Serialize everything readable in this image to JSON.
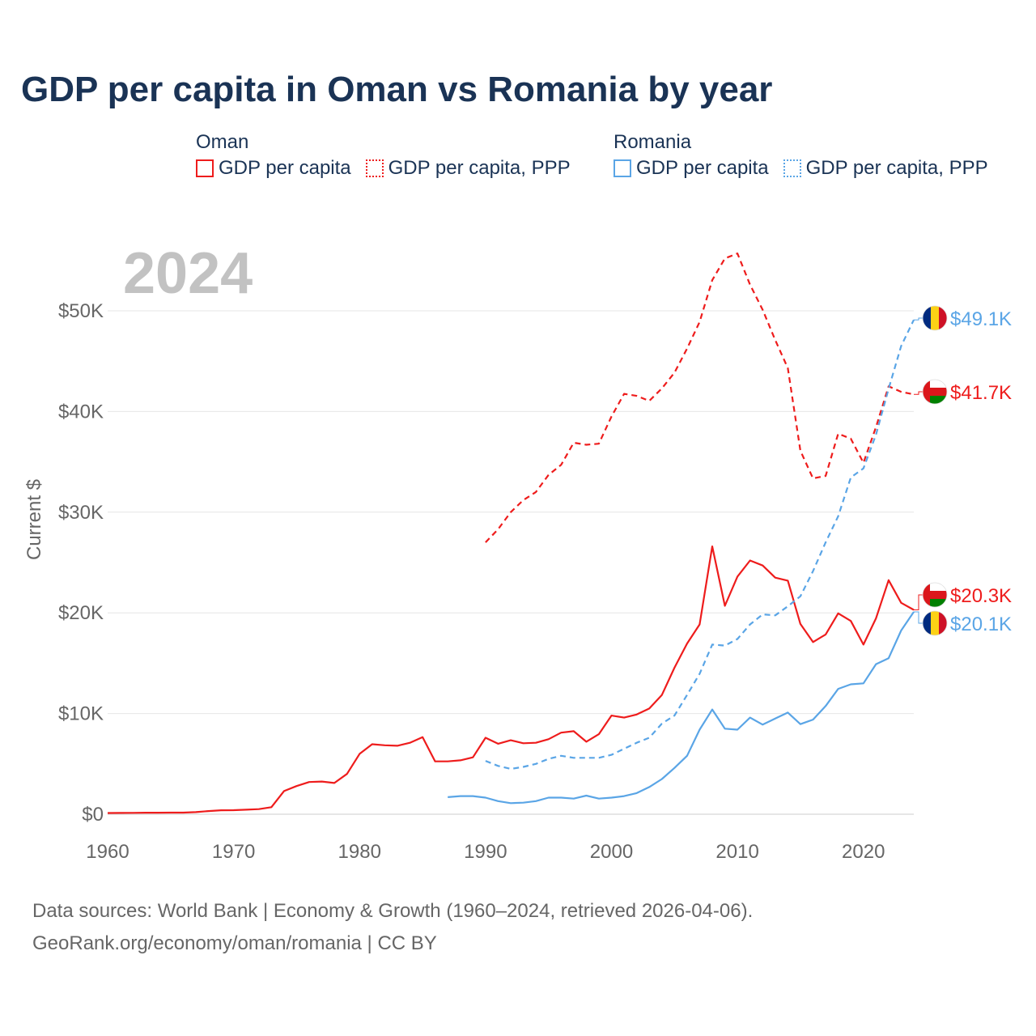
{
  "title": "GDP per capita in Oman vs Romania by year",
  "legend": {
    "groups": [
      {
        "name": "Oman",
        "color": "#ee1c1c",
        "items": [
          {
            "label": "GDP per capita",
            "style": "solid"
          },
          {
            "label": "GDP per capita, PPP",
            "style": "dotted"
          }
        ]
      },
      {
        "name": "Romania",
        "color": "#5aa5e6",
        "items": [
          {
            "label": "GDP per capita",
            "style": "solid"
          },
          {
            "label": "GDP per capita, PPP",
            "style": "dotted"
          }
        ]
      }
    ]
  },
  "year_watermark": "2024",
  "chart_data": {
    "type": "line",
    "ylabel": "Current $",
    "xlim": [
      1960,
      2024
    ],
    "ylim": [
      0,
      55000
    ],
    "x_ticks": [
      1960,
      1970,
      1980,
      1990,
      2000,
      2010,
      2020
    ],
    "x_tick_labels": [
      "1960",
      "1970",
      "1980",
      "1990",
      "2000",
      "2010",
      "2020"
    ],
    "y_ticks": [
      0,
      10000,
      20000,
      30000,
      40000,
      50000
    ],
    "y_tick_labels": [
      "$0",
      "$10K",
      "$20K",
      "$30K",
      "$40K",
      "$50K"
    ],
    "grid": true,
    "series": [
      {
        "name": "Oman GDP per capita",
        "country": "Oman",
        "color": "#ee1c1c",
        "dash": false,
        "start_year": 1960,
        "values": [
          120,
          130,
          140,
          150,
          150,
          160,
          160,
          210,
          310,
          390,
          400,
          450,
          510,
          700,
          2300,
          2800,
          3200,
          3250,
          3100,
          4000,
          6000,
          6950,
          6850,
          6800,
          7100,
          7650,
          5250,
          5250,
          5350,
          5650,
          7600,
          7000,
          7350,
          7050,
          7100,
          7450,
          8100,
          8250,
          7200,
          7950,
          9800,
          9600,
          9900,
          10500,
          11850,
          14550,
          16950,
          18850,
          26600,
          20700,
          23600,
          25200,
          24700,
          23500,
          23200,
          18900,
          17100,
          17850,
          19950,
          19200,
          16850,
          19450,
          23250,
          21000,
          20300
        ]
      },
      {
        "name": "Oman GDP per capita, PPP",
        "country": "Oman",
        "color": "#ee1c1c",
        "dash": true,
        "start_year": 1990,
        "values": [
          27000,
          28300,
          30000,
          31200,
          32000,
          33700,
          34700,
          36900,
          36700,
          36800,
          39500,
          41750,
          41550,
          41050,
          42300,
          43850,
          46250,
          48900,
          53050,
          55200,
          55700,
          52600,
          50100,
          47100,
          44300,
          36100,
          33350,
          33600,
          37800,
          37300,
          34900,
          38450,
          42500,
          41950,
          41700
        ]
      },
      {
        "name": "Romania GDP per capita",
        "country": "Romania",
        "color": "#5aa5e6",
        "dash": false,
        "start_year": 1987,
        "values": [
          1700,
          1800,
          1800,
          1650,
          1300,
          1100,
          1150,
          1300,
          1650,
          1650,
          1550,
          1850,
          1550,
          1650,
          1800,
          2100,
          2700,
          3500,
          4600,
          5800,
          8400,
          10400,
          8500,
          8400,
          9600,
          8900,
          9500,
          10100,
          8950,
          9400,
          10750,
          12450,
          12900,
          13000,
          14900,
          15500,
          18250,
          20100
        ]
      },
      {
        "name": "Romania GDP per capita, PPP",
        "country": "Romania",
        "color": "#5aa5e6",
        "dash": true,
        "start_year": 1990,
        "values": [
          5300,
          4800,
          4500,
          4700,
          5000,
          5500,
          5800,
          5600,
          5600,
          5600,
          5900,
          6500,
          7100,
          7600,
          9000,
          9800,
          11850,
          13950,
          16850,
          16750,
          17400,
          18850,
          19850,
          19750,
          20650,
          21650,
          24150,
          27000,
          29600,
          33450,
          34350,
          37700,
          42250,
          46500,
          49100
        ]
      }
    ],
    "end_labels": [
      {
        "series": "Romania GDP per capita, PPP",
        "text": "$49.1K",
        "country": "Romania",
        "color": "#5aa5e6"
      },
      {
        "series": "Oman GDP per capita, PPP",
        "text": "$41.7K",
        "country": "Oman",
        "color": "#ee1c1c"
      },
      {
        "series": "Oman GDP per capita",
        "text": "$20.3K",
        "country": "Oman",
        "color": "#ee1c1c"
      },
      {
        "series": "Romania GDP per capita",
        "text": "$20.1K",
        "country": "Romania",
        "color": "#5aa5e6"
      }
    ]
  },
  "footer": {
    "line1": "Data sources: World Bank | Economy & Growth (1960–2024, retrieved 2026-04-06).",
    "line2": "GeoRank.org/economy/oman/romania | CC BY"
  }
}
